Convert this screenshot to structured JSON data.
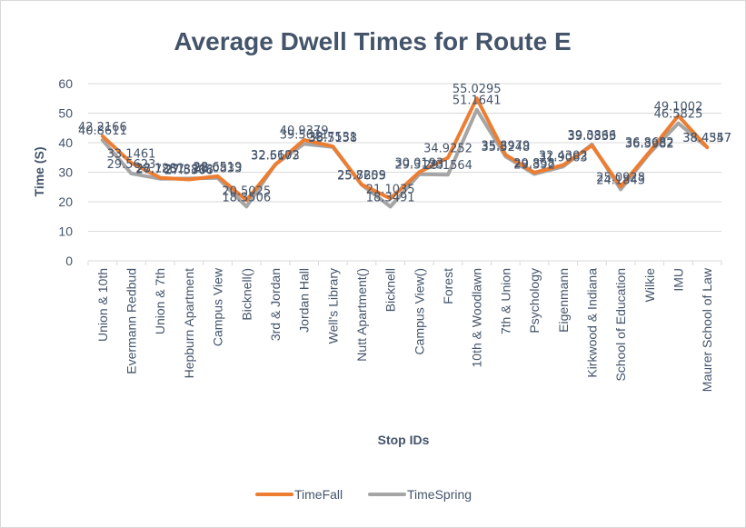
{
  "chart_data": {
    "type": "line",
    "title": "Average Dwell Times for Route E",
    "xlabel": "Stop IDs",
    "ylabel": "Time (S)",
    "ylim": [
      0,
      60
    ],
    "yticks": [
      "0",
      "10",
      "20",
      "30",
      "40",
      "50",
      "60"
    ],
    "grid": true,
    "legend": "bottom",
    "categories": [
      "Union & 10th",
      "Evermann Redbud",
      "Union & 7th",
      "Hepburn Apartment",
      "Campus View",
      "Bicknell()",
      "3rd & Jordan",
      "Jordan Hall",
      "Well's Library",
      "Nutt Apartment()",
      "Bicknell",
      "Campus View()",
      "Forest",
      "10th & Woodlawn",
      "7th & Union",
      "Psychology",
      "Eigenmann",
      "Kirkwood & Indiana",
      "School of Education",
      "Wilkie",
      "IMU",
      "Maurer School of Law"
    ],
    "series": [
      {
        "name": "TimeFall",
        "color": "#ed7d31",
        "values": [
          42.2166,
          33.1461,
          28.1281,
          27.5366,
          28.6519,
          20.5025,
          32.5173,
          40.9379,
          38.7531,
          25.8209,
          21.1035,
          30.0193,
          34.9252,
          55.0295,
          35.8979,
          29.858,
          32.4302,
          39.0333,
          25.0928,
          36.8682,
          49.1002,
          38.4557
        ],
        "labels": [
          "42.2166",
          "33.1461",
          "28.1281",
          "27.5366",
          "28.6519",
          "20.5025",
          "32.5173",
          "40.9379",
          "38.7531",
          "25.8209",
          "21.1035",
          "30.0193",
          "34.9252",
          "55.0295",
          "35.8979",
          "29.858",
          "32.4302",
          "39.0333",
          "25.0928",
          "36.8682",
          "49.1002",
          "38.4557"
        ]
      },
      {
        "name": "TimeSpring",
        "color": "#a5a5a5",
        "values": [
          40.8611,
          29.5623,
          27.7857,
          27.8803,
          28.0833,
          18.3506,
          32.6602,
          39.5621,
          38.5158,
          25.7655,
          18.3491,
          29.3123,
          29.1564,
          51.1641,
          35.3248,
          29.392,
          31.9063,
          39.3866,
          24.1843,
          36.3982,
          46.5825,
          38.4347
        ],
        "labels": [
          "40.8611",
          "29.5623",
          "27.7857",
          "27.8803",
          "28.0833",
          "18.3506",
          "32.6602",
          "39.5621",
          "38.5158",
          "25.7655",
          "18.3491",
          "29.3123",
          "29.1564",
          "51.1641",
          "35.3248",
          "29.392",
          "31.9063",
          "39.3866",
          "24.1843",
          "36.3982",
          "46.5825",
          "38.4347"
        ]
      }
    ]
  }
}
